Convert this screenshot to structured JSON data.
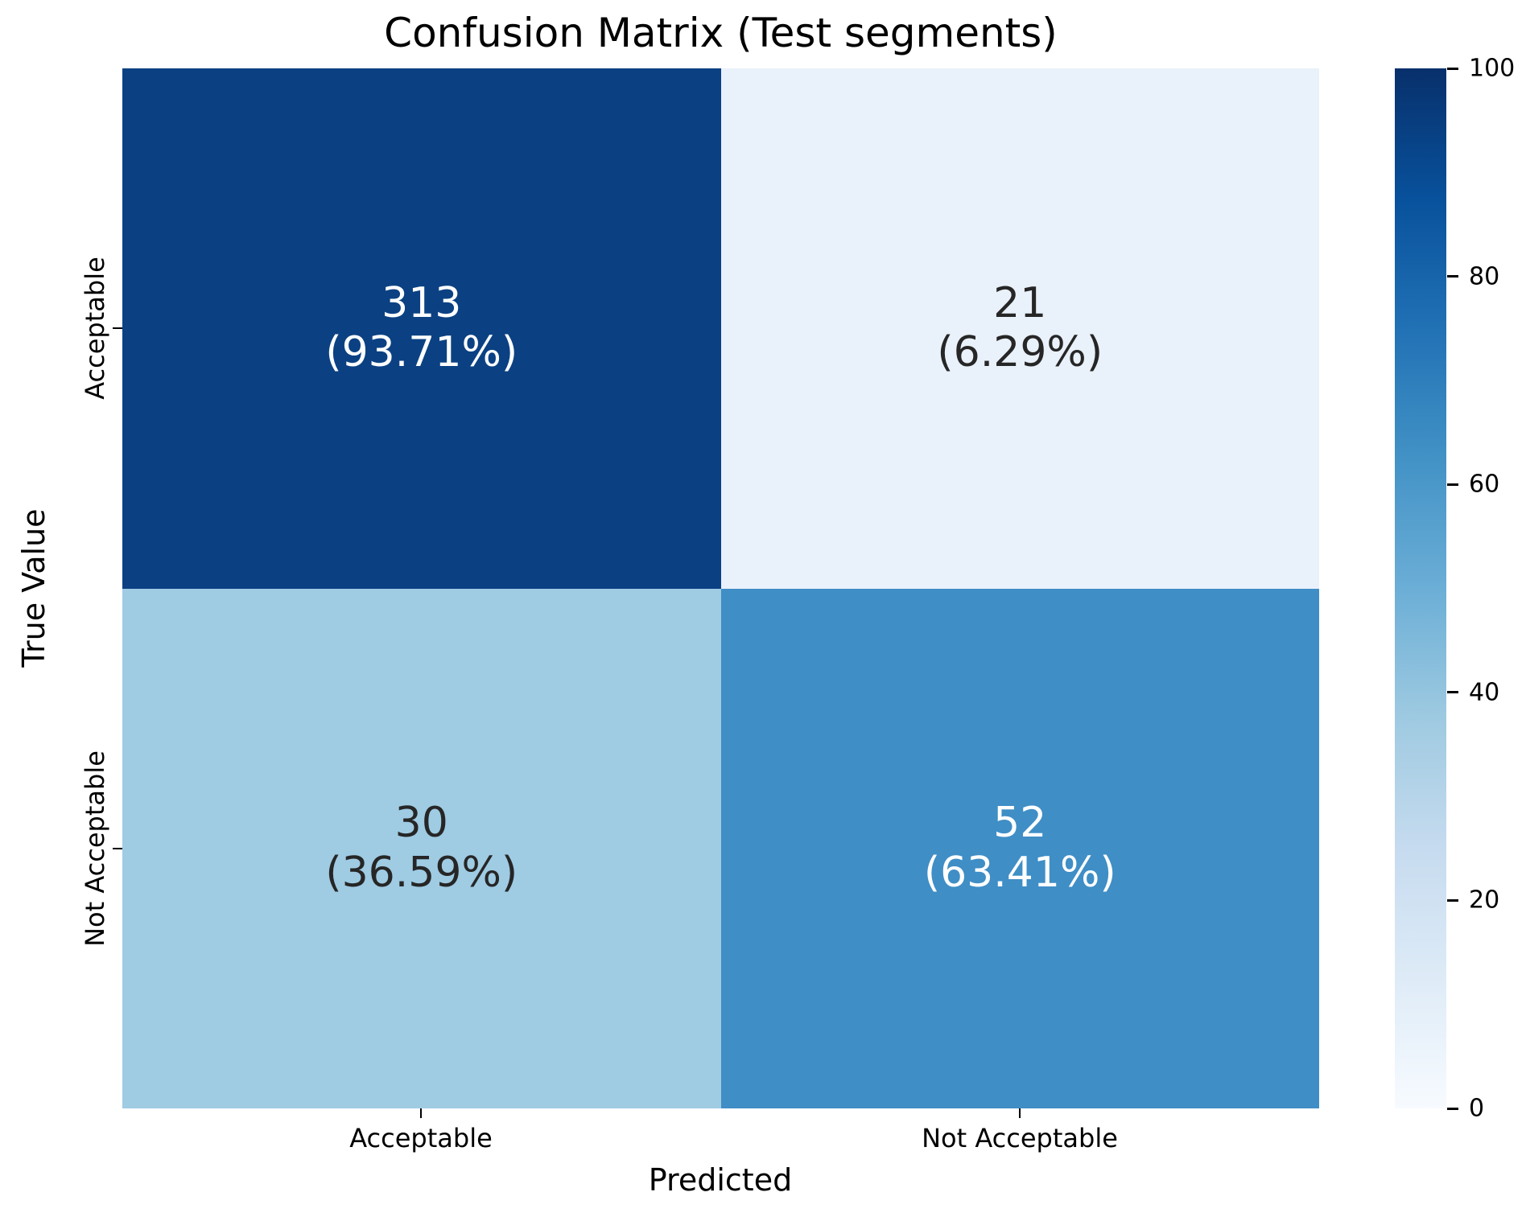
{
  "chart_data": {
    "type": "heatmap",
    "title": "Confusion Matrix (Test segments)",
    "xlabel": "Predicted",
    "ylabel": "True Value",
    "x_categories": [
      "Acceptable",
      "Not Acceptable"
    ],
    "y_categories": [
      "Acceptable",
      "Not Acceptable"
    ],
    "values": [
      [
        313,
        21
      ],
      [
        30,
        52
      ]
    ],
    "row_percents": [
      [
        93.71,
        6.29
      ],
      [
        36.59,
        63.41
      ]
    ],
    "colormap": "Blues",
    "vmin": 0,
    "vmax": 100,
    "grid": false,
    "legend_position": "right-colorbar",
    "cells": [
      {
        "true": "Acceptable",
        "predicted": "Acceptable",
        "count": 313,
        "percent": 93.71,
        "count_label": "313",
        "percent_label": "(93.71%)",
        "bg": "#0b4183",
        "fg": "#ffffff"
      },
      {
        "true": "Acceptable",
        "predicted": "Not Acceptable",
        "count": 21,
        "percent": 6.29,
        "count_label": "21",
        "percent_label": "(6.29%)",
        "bg": "#e9f1fa",
        "fg": "#262626"
      },
      {
        "true": "Not Acceptable",
        "predicted": "Acceptable",
        "count": 30,
        "percent": 36.59,
        "count_label": "30",
        "percent_label": "(36.59%)",
        "bg": "#9fcbe3",
        "fg": "#262626"
      },
      {
        "true": "Not Acceptable",
        "predicted": "Not Acceptable",
        "count": 52,
        "percent": 63.41,
        "count_label": "52",
        "percent_label": "(63.41%)",
        "bg": "#3f8ec6",
        "fg": "#ffffff"
      }
    ],
    "colorbar": {
      "min": 0,
      "max": 100,
      "ticks": [
        {
          "label": "100",
          "value": 100
        },
        {
          "label": "80",
          "value": 80
        },
        {
          "label": "60",
          "value": 60
        },
        {
          "label": "40",
          "value": 40
        },
        {
          "label": "20",
          "value": 20
        },
        {
          "label": "0",
          "value": 0
        }
      ],
      "gradient_colors": [
        "#f7fbff",
        "#deebf7",
        "#c6dbef",
        "#9ecae1",
        "#6baed6",
        "#4292c6",
        "#2171b5",
        "#08519c",
        "#08306b"
      ]
    }
  }
}
